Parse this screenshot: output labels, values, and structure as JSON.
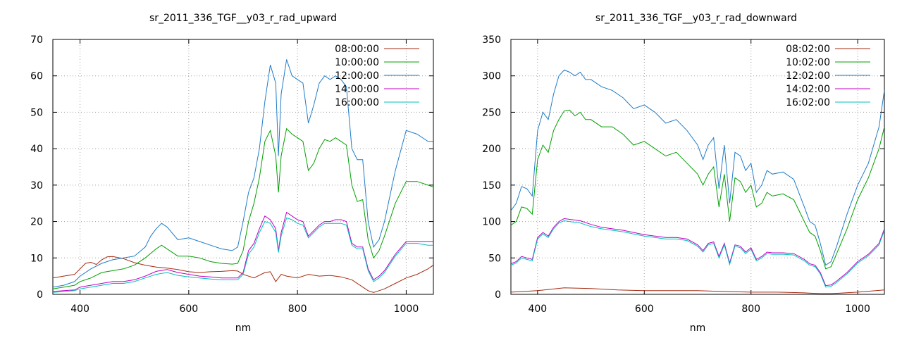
{
  "chart_data": [
    {
      "type": "line",
      "title": "sr_2011_336_TGF__y03_r_rad_upward",
      "xlabel": "nm",
      "ylabel": "",
      "xlim": [
        350,
        1050
      ],
      "ylim": [
        0,
        70
      ],
      "xticks": [
        400,
        600,
        800,
        1000
      ],
      "yticks": [
        0,
        10,
        20,
        30,
        40,
        50,
        60,
        70
      ],
      "grid": true,
      "legend_position": "top-right",
      "series": [
        {
          "name": "08:00:00",
          "color": "#a52a10",
          "x": [
            350,
            370,
            390,
            400,
            410,
            420,
            430,
            440,
            450,
            460,
            480,
            500,
            520,
            540,
            560,
            580,
            600,
            620,
            640,
            660,
            680,
            690,
            700,
            720,
            740,
            750,
            760,
            770,
            780,
            800,
            820,
            840,
            860,
            880,
            900,
            920,
            930,
            940,
            950,
            960,
            980,
            1000,
            1020,
            1040,
            1050
          ],
          "values": [
            4.5,
            5,
            5.5,
            7,
            8.5,
            8.8,
            8.2,
            9.5,
            10.3,
            10.4,
            9.8,
            8.7,
            8,
            7.5,
            7.2,
            6.8,
            6.2,
            6,
            6.2,
            6.3,
            6.5,
            6.4,
            5.5,
            4.5,
            6,
            6.2,
            3.5,
            5.5,
            5,
            4.5,
            5.5,
            5,
            5.2,
            4.8,
            4,
            2,
            1,
            0.5,
            1,
            1.5,
            3,
            4.5,
            5.5,
            7,
            8
          ]
        },
        {
          "name": "10:00:00",
          "color": "#00a000",
          "x": [
            350,
            370,
            390,
            400,
            420,
            440,
            460,
            480,
            500,
            520,
            540,
            550,
            560,
            580,
            600,
            620,
            640,
            660,
            680,
            690,
            700,
            710,
            720,
            730,
            740,
            750,
            760,
            765,
            770,
            780,
            790,
            800,
            810,
            820,
            830,
            840,
            850,
            860,
            870,
            880,
            890,
            900,
            910,
            920,
            930,
            940,
            950,
            960,
            980,
            1000,
            1020,
            1040,
            1050
          ],
          "values": [
            1.5,
            2,
            2.5,
            3.5,
            4.5,
            6,
            6.5,
            7,
            8,
            10,
            12.5,
            13.5,
            12.5,
            10.5,
            10.5,
            10,
            9,
            8.5,
            8.3,
            8.5,
            12,
            20,
            25,
            32,
            42,
            45,
            38,
            28,
            38,
            45.5,
            44,
            43,
            42,
            34,
            36,
            40,
            42.5,
            42,
            43,
            42,
            41,
            30,
            25.5,
            26,
            15,
            10,
            12,
            16,
            25,
            31,
            31,
            30,
            29.5
          ]
        },
        {
          "name": "12:00:00",
          "color": "#1f7cc8",
          "x": [
            350,
            370,
            390,
            400,
            420,
            440,
            460,
            480,
            500,
            520,
            530,
            540,
            550,
            560,
            580,
            600,
            620,
            640,
            660,
            680,
            690,
            700,
            710,
            720,
            730,
            740,
            750,
            760,
            765,
            770,
            780,
            790,
            800,
            810,
            820,
            830,
            840,
            850,
            860,
            870,
            880,
            890,
            900,
            910,
            920,
            930,
            940,
            950,
            960,
            980,
            1000,
            1020,
            1040,
            1050
          ],
          "values": [
            2,
            2.5,
            3.5,
            5,
            7,
            8.5,
            9.5,
            10,
            10.5,
            13,
            16,
            18,
            19.5,
            18.5,
            15,
            15.5,
            14.5,
            13.5,
            12.5,
            12,
            13,
            20,
            28,
            32,
            40,
            53,
            63,
            58,
            38,
            55,
            64.5,
            60,
            59,
            58,
            47,
            52,
            58,
            60,
            59,
            60,
            59,
            57,
            40,
            37,
            37,
            20,
            13,
            15,
            20,
            34,
            45,
            44,
            42,
            42
          ]
        },
        {
          "name": "14:00:00",
          "color": "#c000c0",
          "x": [
            350,
            370,
            390,
            400,
            420,
            440,
            460,
            480,
            500,
            520,
            540,
            560,
            580,
            600,
            620,
            640,
            660,
            680,
            690,
            700,
            710,
            720,
            730,
            740,
            750,
            760,
            765,
            770,
            780,
            790,
            800,
            810,
            820,
            830,
            840,
            850,
            860,
            870,
            880,
            890,
            900,
            910,
            920,
            930,
            940,
            950,
            960,
            980,
            1000,
            1020,
            1040,
            1050
          ],
          "values": [
            0.8,
            1,
            1.2,
            2,
            2.5,
            3,
            3.5,
            3.5,
            4,
            5,
            6.3,
            6.8,
            6,
            5.5,
            5,
            4.8,
            4.5,
            4.5,
            4.5,
            6,
            12,
            14,
            18,
            21.5,
            20.5,
            18,
            12,
            17,
            22.5,
            21.5,
            20.5,
            20,
            16,
            17.5,
            19,
            20,
            20,
            20.5,
            20.5,
            20,
            14,
            13,
            13,
            7,
            4,
            5,
            6.5,
            11,
            14.5,
            14.5,
            14.5,
            14.5
          ]
        },
        {
          "name": "16:00:00",
          "color": "#00c0c0",
          "x": [
            350,
            370,
            390,
            400,
            420,
            440,
            460,
            480,
            500,
            520,
            540,
            560,
            580,
            600,
            620,
            640,
            660,
            680,
            690,
            700,
            710,
            720,
            730,
            740,
            750,
            760,
            765,
            770,
            780,
            790,
            800,
            810,
            820,
            830,
            840,
            850,
            860,
            870,
            880,
            890,
            900,
            910,
            920,
            930,
            940,
            950,
            960,
            980,
            1000,
            1020,
            1040,
            1050
          ],
          "values": [
            0.5,
            0.8,
            1,
            1.5,
            2,
            2.5,
            3,
            3,
            3.5,
            4.5,
            5.5,
            6,
            5.2,
            4.8,
            4.5,
            4.2,
            4,
            4,
            4,
            5.5,
            11,
            13,
            17,
            20,
            19.5,
            17,
            11.5,
            16,
            21,
            20.5,
            19.5,
            19,
            15.5,
            17,
            18.5,
            19.5,
            19.5,
            19.5,
            19.5,
            19,
            13.5,
            12.5,
            12.5,
            6.5,
            3.5,
            4.5,
            6,
            10.5,
            14,
            14,
            13.5,
            13.5
          ]
        }
      ]
    },
    {
      "type": "line",
      "title": "sr_2011_336_TGF__y03_r_rad_downward",
      "xlabel": "nm",
      "ylabel": "",
      "xlim": [
        350,
        1050
      ],
      "ylim": [
        0,
        350
      ],
      "xticks": [
        400,
        600,
        800,
        1000
      ],
      "yticks": [
        0,
        50,
        100,
        150,
        200,
        250,
        300,
        350
      ],
      "grid": true,
      "legend_position": "top-right",
      "series": [
        {
          "name": "08:02:00",
          "color": "#a52a10",
          "x": [
            350,
            400,
            450,
            500,
            550,
            600,
            650,
            700,
            750,
            800,
            850,
            900,
            930,
            950,
            1000,
            1050
          ],
          "values": [
            3,
            5,
            9,
            8,
            6,
            5,
            5,
            5,
            4,
            3,
            3,
            2,
            1,
            1,
            3,
            6
          ]
        },
        {
          "name": "10:02:00",
          "color": "#00a000",
          "x": [
            350,
            360,
            370,
            380,
            390,
            400,
            410,
            420,
            430,
            440,
            450,
            460,
            470,
            480,
            490,
            500,
            520,
            540,
            560,
            580,
            600,
            620,
            640,
            660,
            680,
            700,
            710,
            720,
            730,
            740,
            750,
            760,
            770,
            780,
            790,
            800,
            810,
            820,
            830,
            840,
            860,
            880,
            900,
            910,
            920,
            930,
            940,
            950,
            960,
            980,
            1000,
            1020,
            1040,
            1050
          ],
          "values": [
            95,
            100,
            120,
            118,
            110,
            185,
            205,
            195,
            225,
            240,
            252,
            253,
            245,
            250,
            240,
            240,
            230,
            230,
            220,
            205,
            210,
            200,
            190,
            195,
            180,
            165,
            150,
            165,
            175,
            120,
            165,
            100,
            160,
            155,
            140,
            150,
            120,
            125,
            140,
            135,
            138,
            130,
            100,
            85,
            80,
            60,
            35,
            38,
            55,
            90,
            130,
            160,
            200,
            230
          ]
        },
        {
          "name": "12:02:00",
          "color": "#1f7cc8",
          "x": [
            350,
            360,
            370,
            380,
            390,
            400,
            410,
            420,
            430,
            440,
            450,
            460,
            470,
            480,
            490,
            500,
            520,
            540,
            560,
            580,
            600,
            620,
            640,
            660,
            680,
            700,
            710,
            720,
            730,
            740,
            750,
            760,
            770,
            780,
            790,
            800,
            810,
            820,
            830,
            840,
            860,
            880,
            900,
            910,
            920,
            930,
            940,
            950,
            960,
            980,
            1000,
            1020,
            1040,
            1050
          ],
          "values": [
            115,
            125,
            148,
            145,
            135,
            225,
            250,
            240,
            275,
            300,
            308,
            305,
            300,
            305,
            295,
            295,
            285,
            280,
            270,
            255,
            260,
            250,
            235,
            240,
            225,
            205,
            185,
            205,
            215,
            145,
            205,
            125,
            195,
            190,
            170,
            180,
            140,
            150,
            170,
            165,
            168,
            158,
            120,
            100,
            95,
            70,
            40,
            45,
            65,
            110,
            150,
            180,
            230,
            280
          ]
        },
        {
          "name": "14:02:00",
          "color": "#c000c0",
          "x": [
            350,
            360,
            370,
            380,
            390,
            400,
            410,
            420,
            430,
            440,
            450,
            460,
            470,
            480,
            500,
            520,
            540,
            560,
            580,
            600,
            620,
            640,
            660,
            680,
            700,
            710,
            720,
            730,
            740,
            750,
            760,
            770,
            780,
            790,
            800,
            810,
            820,
            830,
            840,
            860,
            880,
            900,
            910,
            920,
            930,
            940,
            950,
            960,
            980,
            1000,
            1020,
            1040,
            1050
          ],
          "values": [
            42,
            45,
            52,
            50,
            48,
            78,
            85,
            80,
            92,
            100,
            104,
            103,
            102,
            101,
            96,
            92,
            90,
            88,
            85,
            82,
            80,
            78,
            78,
            76,
            68,
            60,
            70,
            72,
            52,
            70,
            43,
            68,
            66,
            58,
            64,
            48,
            52,
            58,
            57,
            57,
            56,
            48,
            42,
            40,
            30,
            12,
            13,
            18,
            30,
            45,
            55,
            70,
            90
          ]
        },
        {
          "name": "16:02:00",
          "color": "#00c0c0",
          "x": [
            350,
            360,
            370,
            380,
            390,
            400,
            410,
            420,
            430,
            440,
            450,
            460,
            470,
            480,
            500,
            520,
            540,
            560,
            580,
            600,
            620,
            640,
            660,
            680,
            700,
            710,
            720,
            730,
            740,
            750,
            760,
            770,
            780,
            790,
            800,
            810,
            820,
            830,
            840,
            860,
            880,
            900,
            910,
            920,
            930,
            940,
            950,
            960,
            980,
            1000,
            1020,
            1040,
            1050
          ],
          "values": [
            40,
            43,
            50,
            48,
            46,
            76,
            83,
            78,
            90,
            98,
            101,
            100,
            99,
            98,
            93,
            90,
            88,
            86,
            83,
            80,
            78,
            76,
            76,
            74,
            66,
            58,
            68,
            70,
            50,
            68,
            41,
            66,
            64,
            56,
            62,
            46,
            50,
            56,
            55,
            55,
            54,
            46,
            40,
            38,
            28,
            10,
            11,
            16,
            28,
            43,
            53,
            68,
            88
          ]
        }
      ]
    }
  ]
}
